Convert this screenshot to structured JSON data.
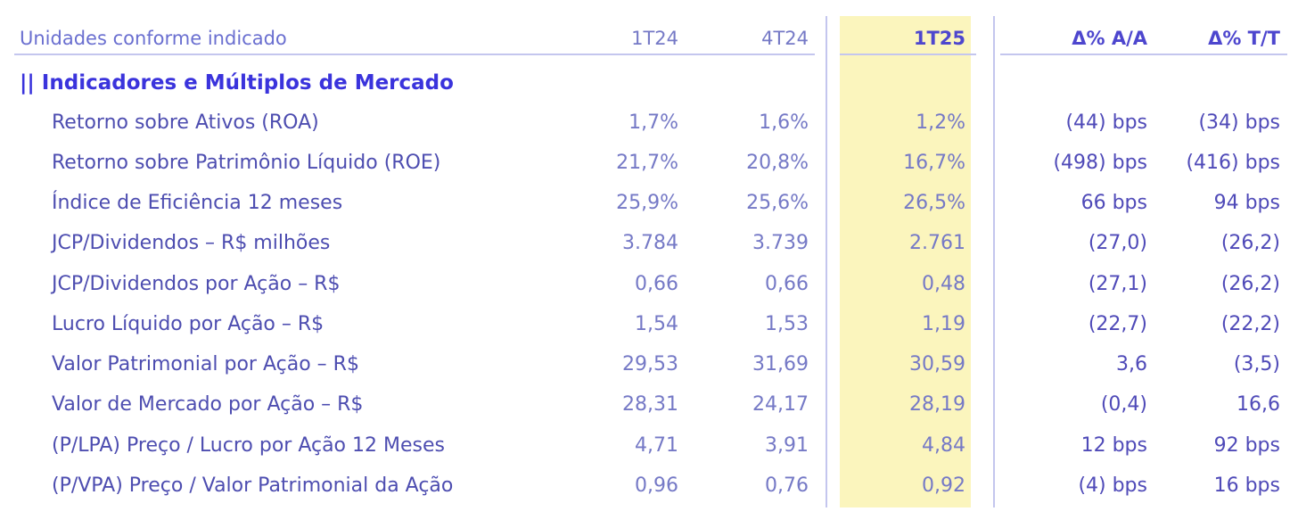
{
  "header": {
    "units_label": "Unidades conforme indicado",
    "columns": [
      "1T24",
      "4T24",
      "1T25",
      "Δ% A/A",
      "Δ% T/T"
    ]
  },
  "section": {
    "title": "|| Indicadores e Múltiplos de Mercado"
  },
  "rows": [
    {
      "label": "Retorno sobre Ativos (ROA)",
      "values": [
        "1,7%",
        "1,6%",
        "1,2%",
        "(44) bps",
        "(34) bps"
      ]
    },
    {
      "label": "Retorno sobre Patrimônio Líquido (ROE)",
      "values": [
        "21,7%",
        "20,8%",
        "16,7%",
        "(498) bps",
        "(416) bps"
      ]
    },
    {
      "label": "Índice de Eficiência 12 meses",
      "values": [
        "25,9%",
        "25,6%",
        "26,5%",
        "66 bps",
        "94 bps"
      ]
    },
    {
      "label": "JCP/Dividendos – R$ milhões",
      "values": [
        "3.784",
        "3.739",
        "2.761",
        "(27,0)",
        "(26,2)"
      ]
    },
    {
      "label": "JCP/Dividendos por Ação – R$",
      "values": [
        "0,66",
        "0,66",
        "0,48",
        "(27,1)",
        "(26,2)"
      ]
    },
    {
      "label": "Lucro Líquido por Ação – R$",
      "values": [
        "1,54",
        "1,53",
        "1,19",
        "(22,7)",
        "(22,2)"
      ]
    },
    {
      "label": "Valor Patrimonial por Ação – R$",
      "values": [
        "29,53",
        "31,69",
        "30,59",
        "3,6",
        "(3,5)"
      ]
    },
    {
      "label": "Valor de Mercado por Ação – R$",
      "values": [
        "28,31",
        "24,17",
        "28,19",
        "(0,4)",
        "16,6"
      ]
    },
    {
      "label": "(P/LPA) Preço / Lucro por Ação 12 Meses",
      "values": [
        "4,71",
        "3,91",
        "4,84",
        "12 bps",
        "92 bps"
      ]
    },
    {
      "label": "(P/VPA) Preço / Valor Patrimonial da Ação",
      "values": [
        "0,96",
        "0,76",
        "0,92",
        "(4) bps",
        "16 bps"
      ]
    }
  ],
  "colors": {
    "highlight_column": "#fbf5bd",
    "section_title": "#3a33dc",
    "row_label": "#4d4db0",
    "number": "#7579c6",
    "rule": "#c4c6ee"
  }
}
